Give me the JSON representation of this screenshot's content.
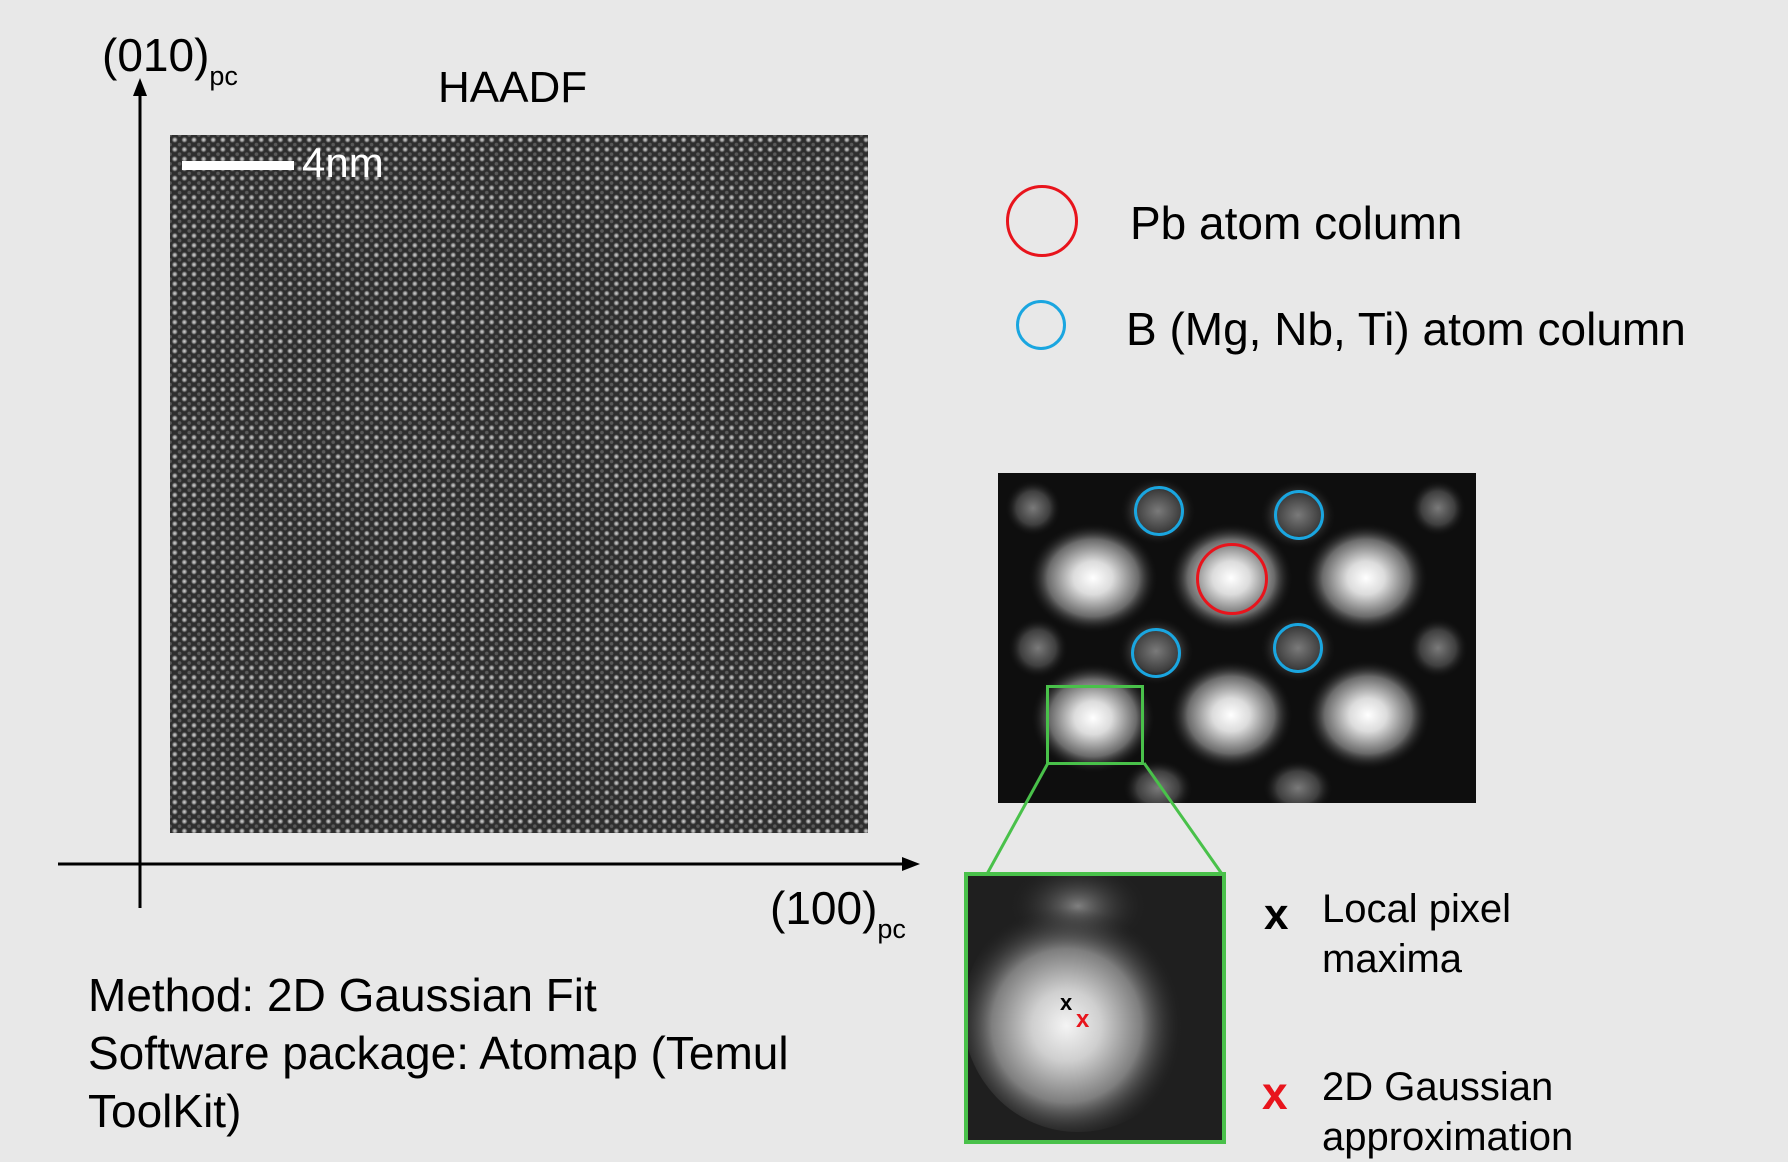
{
  "haadf": {
    "title": "HAADF",
    "scale_bar_label": "4nm"
  },
  "axes": {
    "y_label": "(010)",
    "y_label_sub": "pc",
    "x_label": "(100)",
    "x_label_sub": "pc"
  },
  "legend": {
    "pb_label": "Pb atom column",
    "b_label": "B (Mg, Nb, Ti) atom column",
    "pb_color": "#e8141c",
    "b_color": "#1aa6e0"
  },
  "zoom": {
    "box_color": "#49c14a",
    "local_marker": "x",
    "gauss_marker": "x",
    "local_label_line1": "Local pixel",
    "local_label_line2": "maxima",
    "gauss_label_line1": "2D Gaussian",
    "gauss_label_line2": "approximation",
    "local_color": "#000000",
    "gauss_color": "#e8141c"
  },
  "method": {
    "line1": "Method: 2D Gaussian Fit",
    "line2": "Software package: Atomap (Temul",
    "line3": "ToolKit)"
  }
}
